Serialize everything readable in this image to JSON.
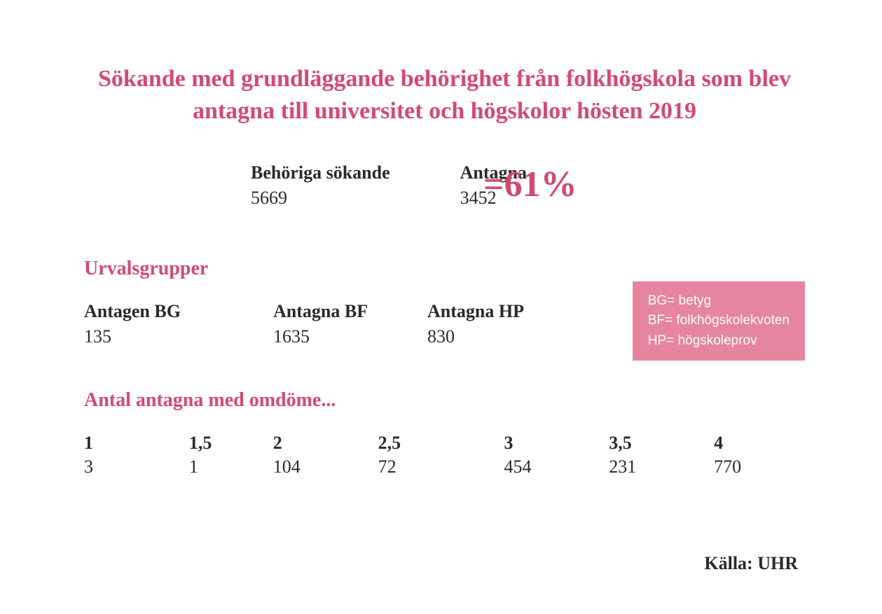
{
  "colors": {
    "accent": "#d44a6f",
    "legend_bg": "#e685a0",
    "legend_text": "#ffffff",
    "text": "#2a2a2a",
    "background": "#ffffff"
  },
  "typography": {
    "title_fontsize": 34,
    "section_title_fontsize": 28,
    "body_fontsize": 26,
    "percentage_fontsize": 52,
    "legend_fontsize": 19,
    "font_family_main": "Georgia, serif",
    "font_family_legend": "Arial, sans-serif"
  },
  "title": "Sökande med grundläggande behörighet från folkhögskola som blev antagna till universitet och högskolor hösten 2019",
  "top_stats": {
    "applicants": {
      "label": "Behöriga sökande",
      "value": "5669"
    },
    "admitted": {
      "label": "Antagna",
      "value": "3452"
    },
    "percentage": "=61%"
  },
  "groups": {
    "title": "Urvalsgrupper",
    "items": [
      {
        "label": "Antagen BG",
        "value": "135"
      },
      {
        "label": "Antagna BF",
        "value": "1635"
      },
      {
        "label": "Antagna HP",
        "value": "830"
      }
    ],
    "legend": [
      "BG= betyg",
      "BF= folkhögskolekvoten",
      "HP= högskoleprov"
    ]
  },
  "grades": {
    "title": "Antal antagna med omdöme...",
    "items": [
      {
        "label": "1",
        "value": "3"
      },
      {
        "label": "1,5",
        "value": "1"
      },
      {
        "label": "2",
        "value": "104"
      },
      {
        "label": "2,5",
        "value": "72"
      },
      {
        "label": "3",
        "value": "454"
      },
      {
        "label": "3,5",
        "value": "231"
      },
      {
        "label": "4",
        "value": "770"
      }
    ]
  },
  "source": "Källa: UHR"
}
